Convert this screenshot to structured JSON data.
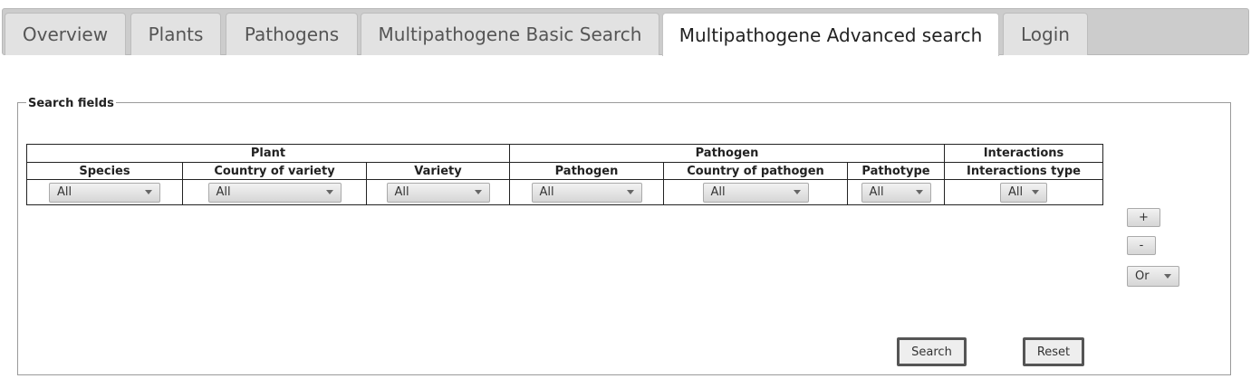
{
  "tabs": [
    {
      "label": "Overview",
      "active": false
    },
    {
      "label": "Plants",
      "active": false
    },
    {
      "label": "Pathogens",
      "active": false
    },
    {
      "label": "Multipathogene Basic Search",
      "active": false
    },
    {
      "label": "Multipathogene Advanced search",
      "active": true
    },
    {
      "label": "Login",
      "active": false
    }
  ],
  "search_fields": {
    "legend": "Search fields",
    "groups": {
      "plant": "Plant",
      "pathogen": "Pathogen",
      "interactions": "Interactions"
    },
    "columns": {
      "species": "Species",
      "country_of_variety": "Country of variety",
      "variety": "Variety",
      "pathogen": "Pathogen",
      "country_of_pathogen": "Country of pathogen",
      "pathotype": "Pathotype",
      "interactions_type": "Interactions type"
    },
    "selects": {
      "species": "All",
      "country_of_variety": "All",
      "variety": "All",
      "pathogen": "All",
      "country_of_pathogen": "All",
      "pathotype": "All",
      "interactions_type": "All"
    }
  },
  "controls": {
    "add_label": "+",
    "remove_label": "-",
    "operator": "Or",
    "search_label": "Search",
    "reset_label": "Reset"
  }
}
